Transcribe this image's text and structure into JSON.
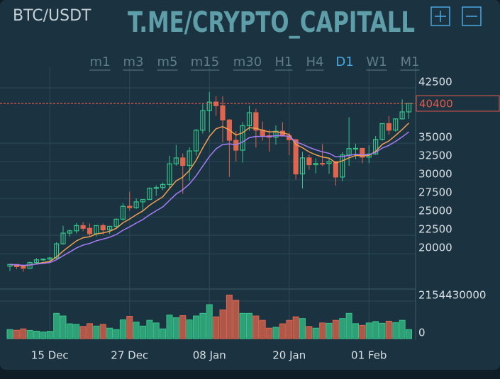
{
  "chart_data": {
    "type": "candlestick",
    "title": "BTC/USDT",
    "watermark": "T.ME/CRYPTO_CAPITALL",
    "timeframes": [
      "m1",
      "m3",
      "m5",
      "m15",
      "m30",
      "H1",
      "H4",
      "D1",
      "W1",
      "M1"
    ],
    "active_timeframe": "D1",
    "categories": [
      null,
      null,
      null,
      null,
      null,
      null,
      "15 Dec",
      null,
      null,
      null,
      null,
      null,
      null,
      null,
      null,
      null,
      null,
      null,
      "27 Dec",
      null,
      null,
      null,
      null,
      null,
      null,
      null,
      null,
      null,
      null,
      null,
      "08 Jan",
      null,
      null,
      null,
      null,
      null,
      null,
      null,
      null,
      null,
      null,
      null,
      "20 Jan",
      null,
      null,
      null,
      null,
      null,
      null,
      null,
      null,
      null,
      null,
      null,
      "01 Feb",
      null,
      null,
      null,
      null,
      null,
      null
    ],
    "open": [
      18320,
      18550,
      18250,
      18030,
      18800,
      19170,
      19270,
      19430,
      21350,
      22800,
      23110,
      23820,
      23450,
      22720,
      23820,
      23240,
      23720,
      24690,
      26440,
      26250,
      27040,
      27360,
      28880,
      28980,
      29400,
      32200,
      33000,
      31990,
      33950,
      36770,
      39430,
      40580,
      40090,
      38150,
      35400,
      34050,
      37370,
      39140,
      36770,
      36010,
      35820,
      36630,
      36000,
      35470,
      30830,
      33010,
      32080,
      32260,
      32250,
      32500,
      30410,
      33400,
      34270,
      34300,
      33110,
      33530,
      35510,
      37660,
      36770,
      38300,
      39250
    ],
    "high": [
      18640,
      18560,
      18290,
      18950,
      19410,
      19350,
      19570,
      21560,
      23800,
      23280,
      24170,
      24300,
      24100,
      23840,
      24100,
      23780,
      24790,
      26870,
      28420,
      27500,
      27390,
      29020,
      29300,
      29680,
      33300,
      34780,
      33600,
      34440,
      36940,
      40370,
      41950,
      41380,
      41350,
      38260,
      36630,
      37850,
      40100,
      39700,
      37950,
      36850,
      37400,
      37850,
      36420,
      35600,
      33830,
      33460,
      32940,
      34880,
      32920,
      32560,
      33780,
      38530,
      34930,
      34330,
      34720,
      35980,
      37660,
      38700,
      38310,
      40950,
      40450
    ],
    "low": [
      17650,
      17910,
      17570,
      18020,
      18710,
      19000,
      19050,
      19290,
      21230,
      22350,
      22750,
      23060,
      22350,
      22350,
      22600,
      22700,
      23430,
      24500,
      25850,
      26100,
      25880,
      27320,
      27850,
      28620,
      28950,
      31960,
      28130,
      29900,
      33290,
      36300,
      36500,
      38720,
      35110,
      30420,
      32530,
      32380,
      36700,
      34410,
      35360,
      33850,
      34800,
      35900,
      33400,
      30070,
      28850,
      31390,
      30900,
      31910,
      30830,
      29240,
      29840,
      31920,
      32850,
      32300,
      32300,
      33420,
      35360,
      36160,
      36570,
      38220,
      38300
    ],
    "close": [
      18550,
      18250,
      18030,
      18800,
      19170,
      19270,
      19430,
      21350,
      22800,
      23110,
      23820,
      23450,
      22720,
      23820,
      23240,
      23720,
      24690,
      26440,
      26250,
      27040,
      27360,
      28880,
      28980,
      29400,
      32200,
      33000,
      31990,
      33950,
      36770,
      39430,
      40580,
      40090,
      38150,
      35400,
      34050,
      37370,
      39140,
      36770,
      36010,
      35820,
      36630,
      36000,
      35470,
      30830,
      33010,
      32080,
      32260,
      32250,
      32500,
      30410,
      33400,
      34270,
      34300,
      33110,
      33530,
      35510,
      37660,
      36770,
      38300,
      39250,
      40400
    ],
    "volume": [
      520000000,
      480000000,
      560000000,
      470000000,
      430000000,
      380000000,
      420000000,
      1450000000,
      1300000000,
      850000000,
      820000000,
      700000000,
      860000000,
      720000000,
      820000000,
      600000000,
      520000000,
      1080000000,
      1280000000,
      950000000,
      720000000,
      1050000000,
      900000000,
      560000000,
      1350000000,
      1200000000,
      1320000000,
      1080000000,
      1300000000,
      1450000000,
      1950000000,
      1250000000,
      1650000000,
      2500000000,
      2200000000,
      1450000000,
      1450000000,
      1300000000,
      1050000000,
      600000000,
      650000000,
      850000000,
      1050000000,
      1250000000,
      1150000000,
      700000000,
      600000000,
      900000000,
      880000000,
      1050000000,
      1150000000,
      1450000000,
      860000000,
      760000000,
      900000000,
      980000000,
      880000000,
      1000000000,
      920000000,
      1050000000,
      520000000
    ],
    "ma": [
      {
        "color": "#f0a050",
        "values": [
          18550,
          18475,
          18364,
          18473,
          18647,
          18803,
          18960,
          19558,
          20368,
          21054,
          21745,
          22171,
          22308,
          22686,
          22825,
          23049,
          23459,
          24204,
          24716,
          25297,
          25813,
          26580,
          27180,
          27735,
          28851,
          29888,
          30414,
          31298,
          32666,
          34357,
          35913,
          36957,
          37255,
          36791,
          36106,
          36422,
          37102,
          37019,
          36767,
          36530,
          36555,
          36416,
          36180,
          34843,
          34385,
          33809,
          33422,
          33129,
          32972,
          32332,
          32599,
          33017,
          33338,
          33281,
          33343,
          33885,
          34829,
          35314,
          36061,
          36858,
          37744
        ]
      },
      {
        "color": "#a57cf5",
        "values": [
          18550,
          18505,
          18434,
          18489,
          18591,
          18693,
          18804,
          19186,
          19728,
          20235,
          20773,
          21175,
          21407,
          21769,
          21990,
          22250,
          22616,
          23190,
          23649,
          24158,
          24638,
          25274,
          25830,
          26366,
          27241,
          28105,
          28688,
          29477,
          30571,
          31900,
          33202,
          34235,
          34822,
          34909,
          34780,
          35169,
          35765,
          35916,
          35930,
          35913,
          36021,
          36018,
          35936,
          35170,
          34846,
          34431,
          34105,
          33827,
          33628,
          33145,
          33183,
          33346,
          33489,
          33432,
          33447,
          33756,
          34342,
          34706,
          35245,
          35846,
          36529
        ]
      }
    ],
    "up_color": "#36c48a",
    "down_color": "#e0654e",
    "last_price": 40400,
    "last_price_color": "#e05a4a",
    "ylim": [
      15500,
      45300
    ],
    "yticks": [
      42500,
      35000,
      32500,
      30000,
      27500,
      25000,
      22500,
      20000
    ],
    "volume_ylim": [
      0,
      2764000000
    ],
    "volume_yticks": [
      2154430000,
      0
    ],
    "grid": true
  }
}
